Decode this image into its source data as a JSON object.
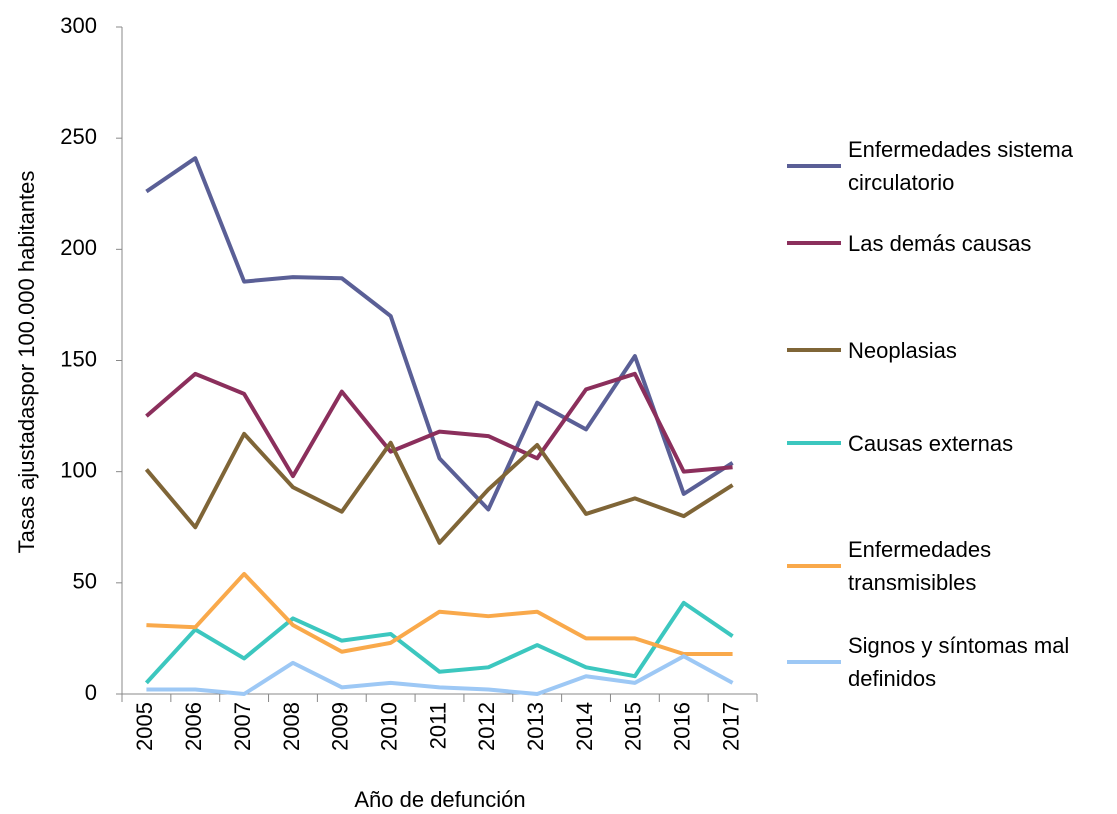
{
  "chart_data": {
    "type": "line",
    "x_label": "Año de defunción",
    "y_label": "Tasas ajustadaspor 100.000 habitantes",
    "categories": [
      "2005",
      "2006",
      "2007",
      "2008",
      "2009",
      "2010",
      "2011",
      "2012",
      "2013",
      "2014",
      "2015",
      "2016",
      "2017"
    ],
    "series": [
      {
        "name": "Enfermedades sistema circulatorio",
        "color": "#5a5f96",
        "values": [
          226,
          241,
          185.5,
          187.5,
          187,
          170,
          106,
          83,
          131,
          119,
          152,
          90,
          104
        ]
      },
      {
        "name": "Las demás causas",
        "color": "#8b2f5c",
        "values": [
          125,
          144,
          135,
          98,
          136,
          109,
          118,
          116,
          106,
          137,
          144,
          100,
          102
        ]
      },
      {
        "name": "Neoplasias",
        "color": "#7f6537",
        "values": [
          101,
          75,
          117,
          93,
          82,
          113,
          68,
          92,
          112,
          81,
          88,
          80,
          94
        ]
      },
      {
        "name": "Causas externas",
        "color": "#3cc7bf",
        "values": [
          5,
          29,
          16,
          34,
          24,
          27,
          10,
          12,
          22,
          12,
          8,
          41,
          26
        ]
      },
      {
        "name": "Enfermedades transmisibles",
        "color": "#f9a94b",
        "values": [
          31,
          30,
          54,
          31,
          19,
          23,
          37,
          35,
          37,
          25,
          25,
          18,
          18
        ]
      },
      {
        "name": "Signos y síntomas mal definidos",
        "color": "#9dc8f5",
        "values": [
          2,
          2,
          0,
          14,
          3,
          5,
          3,
          2,
          0,
          8,
          5,
          17,
          5
        ]
      }
    ],
    "ylim": [
      0,
      300
    ],
    "yticks": [
      0,
      50,
      100,
      150,
      200,
      250,
      300
    ],
    "grid": false,
    "legend": "right"
  }
}
